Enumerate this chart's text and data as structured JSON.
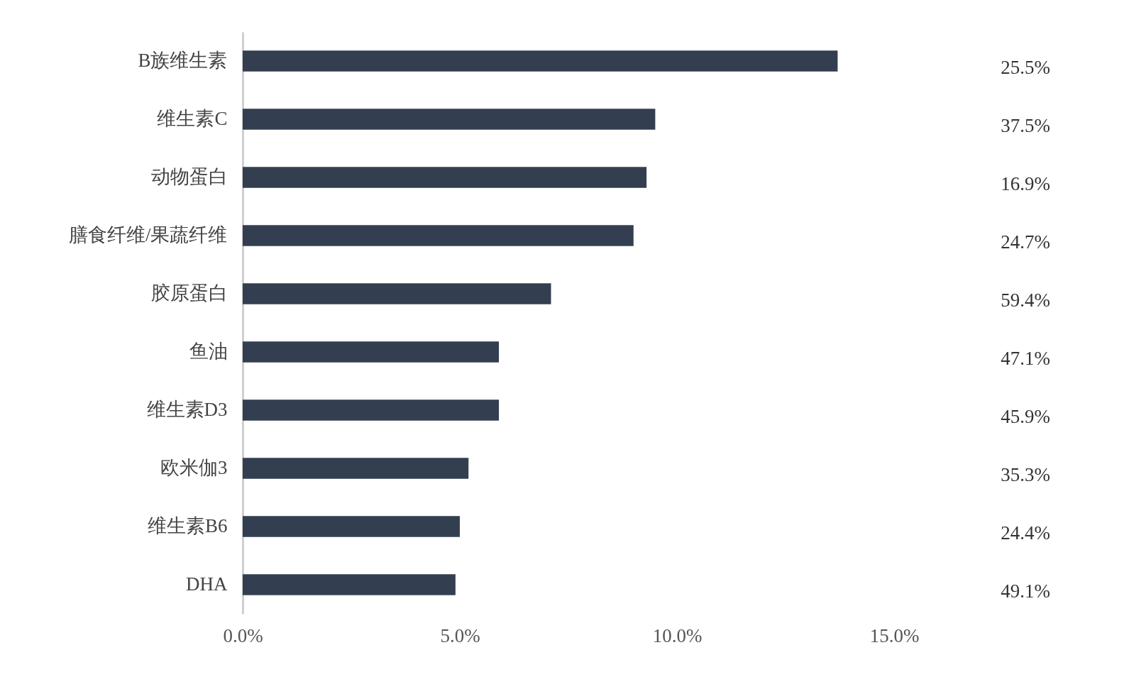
{
  "chart_data": {
    "type": "bar",
    "orientation": "horizontal",
    "categories": [
      "B族维生素",
      "维生素C",
      "动物蛋白",
      "膳食纤维/果蔬纤维",
      "胶原蛋白",
      "鱼油",
      "维生素D3",
      "欧米伽3",
      "维生素B6",
      "DHA"
    ],
    "values": [
      13.7,
      9.5,
      9.3,
      9.0,
      7.1,
      5.9,
      5.9,
      5.2,
      5.0,
      4.9
    ],
    "color": "#333f50",
    "xlim": [
      0,
      15
    ],
    "xticks": [
      {
        "value": 0,
        "label": "0.0%"
      },
      {
        "value": 5,
        "label": "5.0%"
      },
      {
        "value": 10,
        "label": "10.0%"
      },
      {
        "value": 15,
        "label": "15.0%"
      }
    ],
    "grid": false,
    "annotations": [
      "25.5%",
      "37.5%",
      "16.9%",
      "24.7%",
      "59.4%",
      "47.1%",
      "45.9%",
      "35.3%",
      "24.4%",
      "49.1%"
    ]
  }
}
